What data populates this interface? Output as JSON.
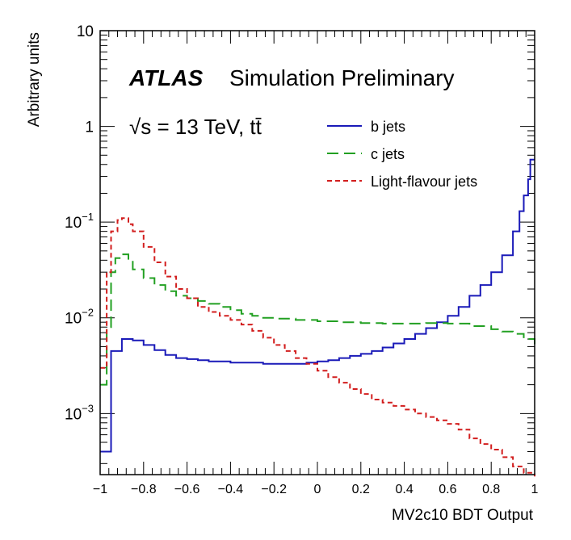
{
  "chart_data": {
    "type": "line",
    "style": "step-histogram",
    "title": "",
    "experiment_label": "ATLAS",
    "status_label": "Simulation Preliminary",
    "energy_label": "√s = 13 TeV, tt̄",
    "xlabel": "MV2c10 BDT Output",
    "ylabel": "Arbitrary units",
    "xlim": [
      -1,
      1
    ],
    "ylim": [
      0.00023,
      10
    ],
    "yscale": "log",
    "grid": false,
    "legend_position": "top-right",
    "x_ticks": [
      "−1",
      "−0.8",
      "−0.6",
      "−0.4",
      "−0.2",
      "0",
      "0.2",
      "0.4",
      "0.6",
      "0.8",
      "1"
    ],
    "x_tick_values": [
      -1,
      -0.8,
      -0.6,
      -0.4,
      -0.2,
      0,
      0.2,
      0.4,
      0.6,
      0.8,
      1
    ],
    "y_ticks": [
      {
        "value": 10,
        "base": "10",
        "exp": ""
      },
      {
        "value": 1,
        "base": "1",
        "exp": ""
      },
      {
        "value": 0.1,
        "base": "10",
        "exp": "−1"
      },
      {
        "value": 0.01,
        "base": "10",
        "exp": "−2"
      },
      {
        "value": 0.001,
        "base": "10",
        "exp": "−3"
      }
    ],
    "series": [
      {
        "name": "b jets",
        "color": "#1a1ab8",
        "dash": "solid",
        "x": [
          -1,
          -0.95,
          -0.9,
          -0.85,
          -0.8,
          -0.75,
          -0.7,
          -0.65,
          -0.6,
          -0.55,
          -0.5,
          -0.45,
          -0.4,
          -0.35,
          -0.3,
          -0.25,
          -0.2,
          -0.15,
          -0.1,
          -0.05,
          0,
          0.05,
          0.1,
          0.15,
          0.2,
          0.25,
          0.3,
          0.35,
          0.4,
          0.45,
          0.5,
          0.55,
          0.6,
          0.65,
          0.7,
          0.75,
          0.8,
          0.85,
          0.9,
          0.93,
          0.95,
          0.97,
          0.98,
          0.99,
          1
        ],
        "y": [
          0.0004,
          0.0045,
          0.006,
          0.0058,
          0.0052,
          0.0046,
          0.0041,
          0.0038,
          0.0037,
          0.0036,
          0.0035,
          0.0035,
          0.0034,
          0.0034,
          0.0034,
          0.0033,
          0.0033,
          0.0033,
          0.0033,
          0.0034,
          0.0035,
          0.0036,
          0.0038,
          0.004,
          0.0042,
          0.0045,
          0.0049,
          0.0054,
          0.006,
          0.0068,
          0.0078,
          0.009,
          0.0105,
          0.013,
          0.017,
          0.022,
          0.03,
          0.045,
          0.08,
          0.13,
          0.19,
          0.28,
          0.45,
          0.45,
          0.45
        ]
      },
      {
        "name": "c jets",
        "color": "#22a022",
        "dash": "long-dash",
        "x": [
          -1,
          -0.97,
          -0.95,
          -0.93,
          -0.9,
          -0.87,
          -0.85,
          -0.8,
          -0.75,
          -0.7,
          -0.65,
          -0.6,
          -0.55,
          -0.5,
          -0.45,
          -0.4,
          -0.35,
          -0.3,
          -0.25,
          -0.2,
          -0.1,
          0,
          0.1,
          0.2,
          0.3,
          0.4,
          0.5,
          0.6,
          0.7,
          0.8,
          0.85,
          0.9,
          0.95,
          1
        ],
        "y": [
          0.002,
          0.008,
          0.03,
          0.042,
          0.046,
          0.04,
          0.032,
          0.026,
          0.022,
          0.019,
          0.017,
          0.016,
          0.015,
          0.014,
          0.013,
          0.012,
          0.011,
          0.0105,
          0.01,
          0.0098,
          0.0095,
          0.0092,
          0.009,
          0.0088,
          0.0087,
          0.0087,
          0.0088,
          0.0087,
          0.0082,
          0.0076,
          0.0072,
          0.0068,
          0.006,
          0.005
        ]
      },
      {
        "name": "Light-flavour jets",
        "color": "#d21e1e",
        "dash": "short-dash",
        "x": [
          -1,
          -0.97,
          -0.95,
          -0.92,
          -0.9,
          -0.87,
          -0.85,
          -0.8,
          -0.75,
          -0.7,
          -0.65,
          -0.6,
          -0.55,
          -0.5,
          -0.45,
          -0.4,
          -0.35,
          -0.3,
          -0.25,
          -0.2,
          -0.15,
          -0.1,
          -0.05,
          0,
          0.05,
          0.1,
          0.15,
          0.2,
          0.25,
          0.3,
          0.35,
          0.4,
          0.45,
          0.5,
          0.55,
          0.6,
          0.65,
          0.7,
          0.75,
          0.8,
          0.85,
          0.9,
          0.95,
          1
        ],
        "y": [
          0.003,
          0.03,
          0.08,
          0.105,
          0.11,
          0.095,
          0.08,
          0.055,
          0.038,
          0.027,
          0.02,
          0.016,
          0.013,
          0.0115,
          0.0105,
          0.0095,
          0.0085,
          0.0073,
          0.0062,
          0.0052,
          0.0045,
          0.0038,
          0.0033,
          0.0028,
          0.0024,
          0.0021,
          0.0018,
          0.0016,
          0.0014,
          0.0013,
          0.0012,
          0.0011,
          0.001,
          0.00092,
          0.00085,
          0.00078,
          0.00068,
          0.00055,
          0.00048,
          0.00042,
          0.00035,
          0.00028,
          0.00024,
          0.00022
        ]
      }
    ]
  }
}
